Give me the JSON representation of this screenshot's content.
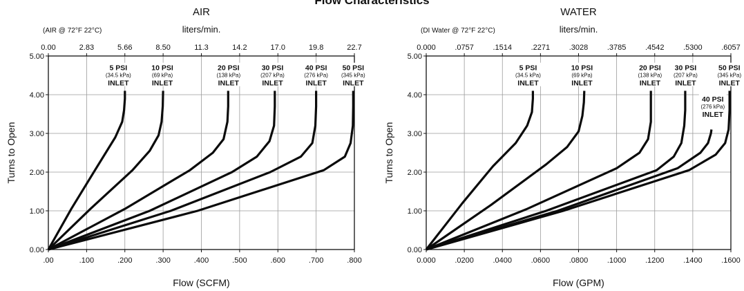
{
  "page_title": "Flow Characteristics",
  "chart_data": [
    {
      "type": "line",
      "title": "AIR",
      "condition_note": "(AIR @ 72°F  22°C)",
      "xlabel": "Flow (SCFM)",
      "ylabel": "Turns to Open",
      "secondary_xlabel": "liters/min.",
      "xlim": [
        0,
        0.8
      ],
      "ylim": [
        0,
        5
      ],
      "x_tick_labels": [
        ".00",
        ".100",
        ".200",
        ".300",
        ".400",
        ".500",
        ".600",
        ".700",
        ".800"
      ],
      "y_tick_labels": [
        "0.00",
        "1.00",
        "2.00",
        "3.00",
        "4.00",
        "5.00"
      ],
      "secondary_tick_labels": [
        "0.00",
        "2.83",
        "5.66",
        "8.50",
        "11.3",
        "14.2",
        "17.0",
        "19.8",
        "22.7"
      ],
      "grid": true,
      "series": [
        {
          "name": "5 PSI",
          "sub": "(34.5 kPa)",
          "tag": "INLET",
          "points": [
            [
              0,
              0
            ],
            [
              0.06,
              1.05
            ],
            [
              0.125,
              2.1
            ],
            [
              0.175,
              2.9
            ],
            [
              0.193,
              3.3
            ],
            [
              0.198,
              3.6
            ],
            [
              0.2,
              3.9
            ],
            [
              0.2,
              4.1
            ]
          ]
        },
        {
          "name": "10 PSI",
          "sub": "(69 kPa)",
          "tag": "INLET",
          "points": [
            [
              0,
              0
            ],
            [
              0.11,
              1.05
            ],
            [
              0.22,
              2.05
            ],
            [
              0.265,
              2.55
            ],
            [
              0.288,
              2.95
            ],
            [
              0.296,
              3.3
            ],
            [
              0.299,
              3.7
            ],
            [
              0.3,
              4.1
            ]
          ]
        },
        {
          "name": "20 PSI",
          "sub": "(138 kPa)",
          "tag": "INLET",
          "points": [
            [
              0,
              0
            ],
            [
              0.2,
              1.05
            ],
            [
              0.37,
              2.05
            ],
            [
              0.43,
              2.5
            ],
            [
              0.458,
              2.85
            ],
            [
              0.468,
              3.3
            ],
            [
              0.47,
              3.7
            ],
            [
              0.47,
              4.1
            ]
          ]
        },
        {
          "name": "30 PSI",
          "sub": "(207 kPa)",
          "tag": "INLET",
          "points": [
            [
              0,
              0
            ],
            [
              0.265,
              1.0
            ],
            [
              0.48,
              2.0
            ],
            [
              0.545,
              2.4
            ],
            [
              0.578,
              2.8
            ],
            [
              0.59,
              3.2
            ],
            [
              0.592,
              3.7
            ],
            [
              0.592,
              4.1
            ]
          ]
        },
        {
          "name": "40 PSI",
          "sub": "(276 kPa)",
          "tag": "INLET",
          "points": [
            [
              0,
              0
            ],
            [
              0.32,
              1.0
            ],
            [
              0.58,
              2.0
            ],
            [
              0.66,
              2.4
            ],
            [
              0.69,
              2.75
            ],
            [
              0.698,
              3.2
            ],
            [
              0.7,
              3.7
            ],
            [
              0.7,
              4.1
            ]
          ]
        },
        {
          "name": "50 PSI",
          "sub": "(345 kPa)",
          "tag": "INLET",
          "points": [
            [
              0,
              0
            ],
            [
              0.39,
              1.0
            ],
            [
              0.72,
              2.05
            ],
            [
              0.775,
              2.4
            ],
            [
              0.79,
              2.75
            ],
            [
              0.796,
              3.2
            ],
            [
              0.797,
              3.7
            ],
            [
              0.797,
              4.1
            ]
          ]
        }
      ]
    },
    {
      "type": "line",
      "title": "WATER",
      "condition_note": "(DI Water @ 72°F  22°C)",
      "xlabel": "Flow (GPM)",
      "ylabel": "Turns to Open",
      "secondary_xlabel": "liters/min.",
      "xlim": [
        0,
        0.16
      ],
      "ylim": [
        0,
        5
      ],
      "x_tick_labels": [
        "0.000",
        ".0200",
        ".0400",
        ".0600",
        ".0800",
        ".1000",
        ".1200",
        ".1400",
        ".1600"
      ],
      "y_tick_labels": [
        "0.00",
        "1.00",
        "2.00",
        "3.00",
        "4.00",
        "5.00"
      ],
      "secondary_tick_labels": [
        "0.000",
        ".0757",
        ".1514",
        ".2271",
        ".3028",
        ".3785",
        ".4542",
        ".5300",
        ".6057"
      ],
      "grid": true,
      "series": [
        {
          "name": "5 PSI",
          "sub": "(34.5 kPa)",
          "tag": "INLET",
          "points": [
            [
              0,
              0
            ],
            [
              0.019,
              1.2
            ],
            [
              0.035,
              2.15
            ],
            [
              0.047,
              2.75
            ],
            [
              0.053,
              3.2
            ],
            [
              0.0555,
              3.55
            ],
            [
              0.056,
              3.9
            ],
            [
              0.056,
              4.1
            ]
          ]
        },
        {
          "name": "10 PSI",
          "sub": "(69 kPa)",
          "tag": "INLET",
          "points": [
            [
              0,
              0
            ],
            [
              0.034,
              1.15
            ],
            [
              0.063,
              2.2
            ],
            [
              0.074,
              2.65
            ],
            [
              0.08,
              3.05
            ],
            [
              0.082,
              3.45
            ],
            [
              0.0828,
              3.8
            ],
            [
              0.083,
              4.1
            ]
          ]
        },
        {
          "name": "20 PSI",
          "sub": "(138 kPa)",
          "tag": "INLET",
          "points": [
            [
              0,
              0
            ],
            [
              0.053,
              1.05
            ],
            [
              0.1,
              2.1
            ],
            [
              0.112,
              2.5
            ],
            [
              0.1165,
              2.85
            ],
            [
              0.118,
              3.3
            ],
            [
              0.118,
              3.8
            ],
            [
              0.118,
              4.1
            ]
          ]
        },
        {
          "name": "30 PSI",
          "sub": "(207 kPa)",
          "tag": "INLET",
          "points": [
            [
              0,
              0
            ],
            [
              0.063,
              1.0
            ],
            [
              0.121,
              2.05
            ],
            [
              0.13,
              2.4
            ],
            [
              0.134,
              2.75
            ],
            [
              0.1355,
              3.2
            ],
            [
              0.136,
              3.6
            ],
            [
              0.136,
              4.1
            ]
          ]
        },
        {
          "name": "40 PSI",
          "sub": "(276 kPa)",
          "tag": "INLET",
          "points": [
            [
              0,
              0
            ],
            [
              0.069,
              1.0
            ],
            [
              0.132,
              2.1
            ],
            [
              0.144,
              2.5
            ],
            [
              0.148,
              2.75
            ],
            [
              0.1495,
              3.0
            ],
            [
              0.1498,
              3.1
            ]
          ]
        },
        {
          "name": "50 PSI",
          "sub": "(345 kPa)",
          "tag": "INLET",
          "points": [
            [
              0,
              0
            ],
            [
              0.072,
              1.0
            ],
            [
              0.138,
              2.05
            ],
            [
              0.152,
              2.45
            ],
            [
              0.157,
              2.75
            ],
            [
              0.1588,
              3.1
            ],
            [
              0.1593,
              3.6
            ],
            [
              0.1593,
              4.1
            ]
          ]
        }
      ]
    }
  ]
}
